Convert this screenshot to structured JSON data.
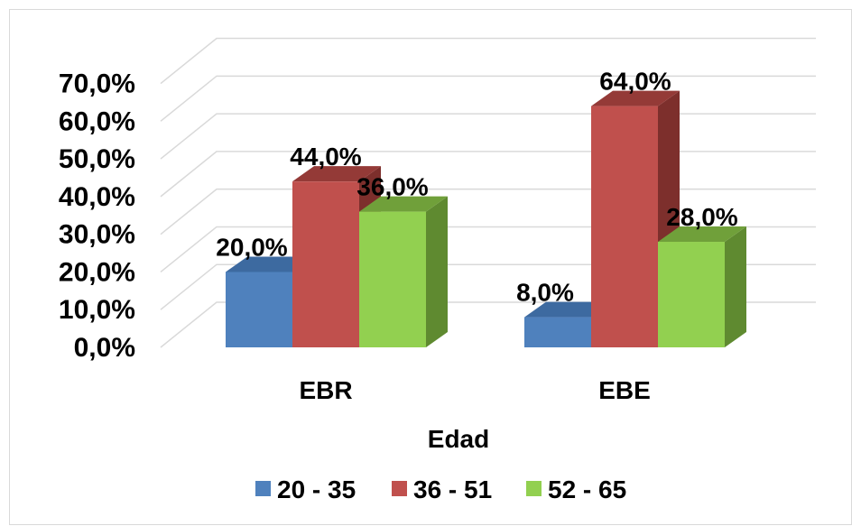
{
  "chart_data": {
    "type": "bar",
    "style": "3d-clustered-column",
    "categories": [
      "EBR",
      "EBE"
    ],
    "series": [
      {
        "name": "20 - 35",
        "values": [
          20.0,
          8.0
        ],
        "labels": [
          "20,0%",
          "8,0%"
        ],
        "color": "#4f81bd",
        "side_color": "#3a6190",
        "top_color": "#3d6aa0"
      },
      {
        "name": "36 - 51",
        "values": [
          44.0,
          64.0
        ],
        "labels": [
          "44,0%",
          "64,0%"
        ],
        "color": "#c0504d",
        "side_color": "#7d2f2c",
        "top_color": "#943a37"
      },
      {
        "name": "52 - 65",
        "values": [
          36.0,
          28.0
        ],
        "labels": [
          "36,0%",
          "28,0%"
        ],
        "color": "#92d050",
        "side_color": "#5f8a30",
        "top_color": "#70a03a"
      }
    ],
    "yticks": [
      "0,0%",
      "10,0%",
      "20,0%",
      "30,0%",
      "40,0%",
      "50,0%",
      "60,0%",
      "70,0%"
    ],
    "ylim": [
      0,
      70
    ],
    "xlabel": "Edad",
    "ylabel": "",
    "title": "",
    "grid": true,
    "legend_position": "bottom"
  }
}
